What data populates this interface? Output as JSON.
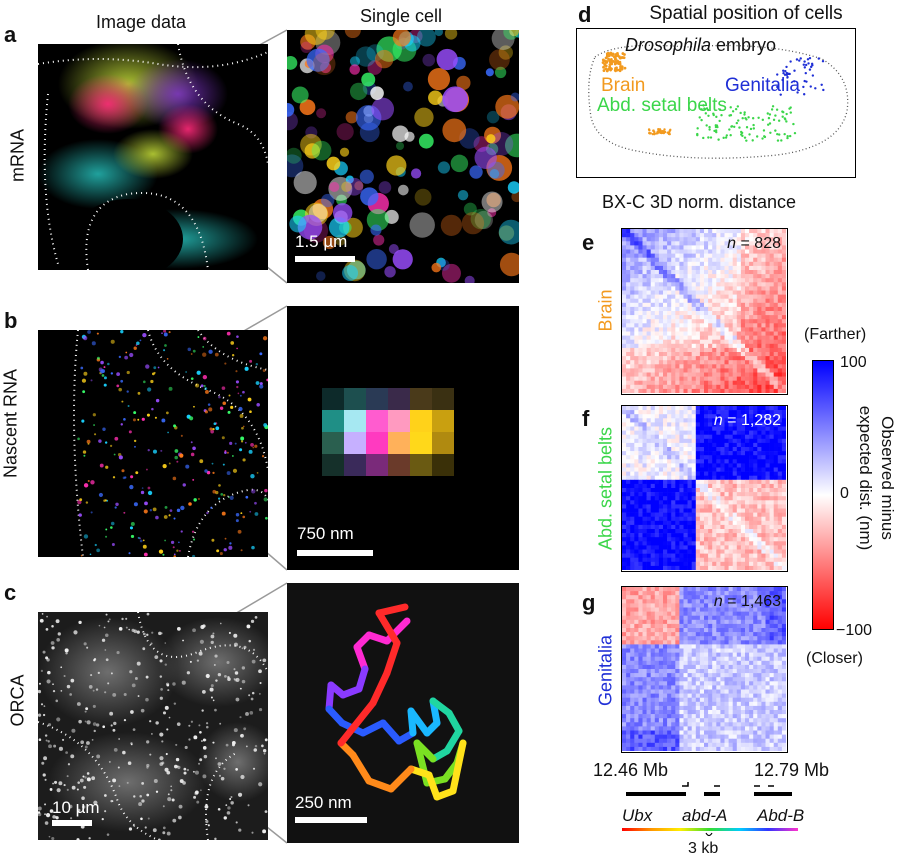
{
  "panels": {
    "a": "a",
    "b": "b",
    "c": "c",
    "d": "d",
    "e": "e",
    "f": "f",
    "g": "g"
  },
  "headers": {
    "image_data": "Image data",
    "single_cell": "Single cell"
  },
  "rows": {
    "mrna": "mRNA",
    "nascent": "Nascent RNA",
    "orca": "ORCA"
  },
  "scalebars": {
    "a": "1.5 µm",
    "b": "750 nm",
    "c_large": "10 µm",
    "c_small": "250 nm"
  },
  "embryo": {
    "title": "Spatial position of cells",
    "species": "Drosophila",
    "species_suffix": " embryo",
    "brain": "Brain",
    "genitalia": "Genitalia",
    "abd": "Abd. setal belts",
    "colors": {
      "brain": "#f29a1f",
      "genitalia": "#1f2fd6",
      "abd": "#3bd64a"
    }
  },
  "heatmap_title": "BX-C 3D norm. distance",
  "heatmaps": [
    {
      "panel": "e",
      "label": "Brain",
      "n_prefix": "n",
      "n_value": " = 828",
      "color": "#f29a1f"
    },
    {
      "panel": "f",
      "label": "Abd. setal belts",
      "n_prefix": "n",
      "n_value": " = 1,282",
      "color": "#3bd64a"
    },
    {
      "panel": "g",
      "label": "Genitalia",
      "n_prefix": "n",
      "n_value": " = 1,463",
      "color": "#1f2fd6"
    }
  ],
  "colorbar": {
    "farther": "(Farther)",
    "closer": "(Closer)",
    "max": "100",
    "mid": "0",
    "min": "−100",
    "label_line1": "Observed minus",
    "label_line2": "expected dist. (nm)"
  },
  "genome": {
    "start": "12.46 Mb",
    "end": "12.79 Mb",
    "genes": [
      "Ubx",
      "abd-A",
      "Abd-B"
    ],
    "probe_scale": "3 kb"
  }
}
